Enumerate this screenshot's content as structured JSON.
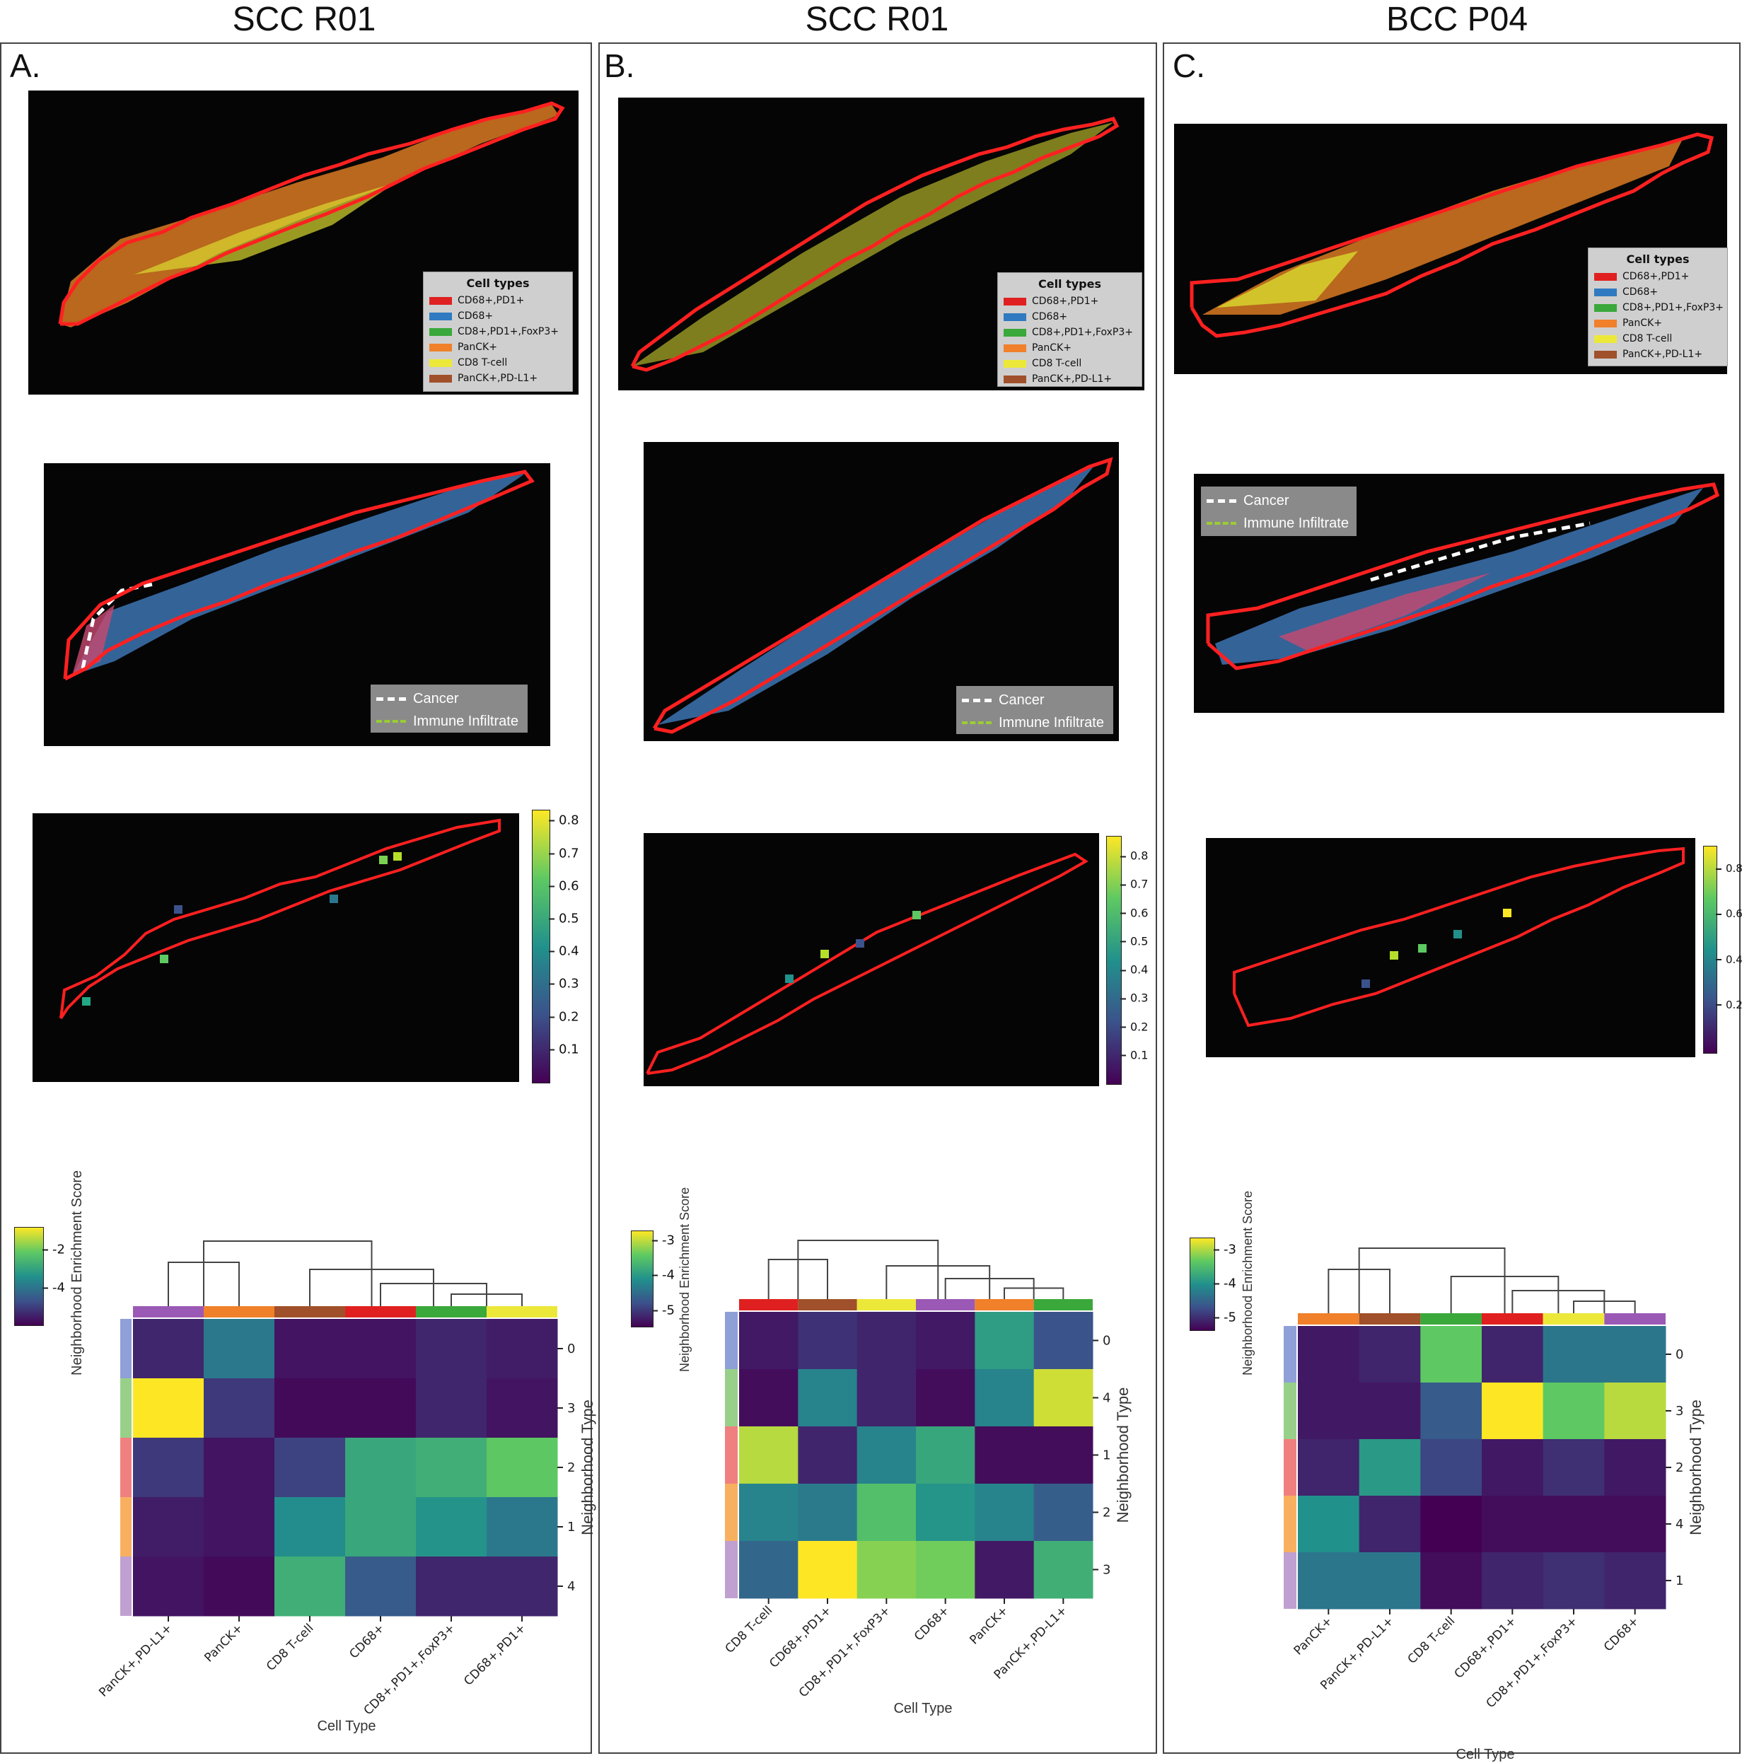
{
  "titles": [
    "SCC R01",
    "SCC R01",
    "BCC P04"
  ],
  "panel_labels": [
    "A.",
    "B.",
    "C."
  ],
  "cell_legend": {
    "title": "Cell types",
    "items": [
      {
        "label": "CD68+,PD1+",
        "color": "#e02020"
      },
      {
        "label": "CD68+",
        "color": "#2f7ac0"
      },
      {
        "label": "CD8+,PD1+,FoxP3+",
        "color": "#3aa83a"
      },
      {
        "label": "PanCK+",
        "color": "#f0802a"
      },
      {
        "label": "CD8 T-cell",
        "color": "#ece83a"
      },
      {
        "label": "PanCK+,PD-L1+",
        "color": "#a0502a"
      }
    ]
  },
  "region_legend": {
    "items": [
      {
        "label": "Cancer",
        "color": "#ffffff"
      },
      {
        "label": "Immune Infiltrate",
        "color": "#9acd32"
      }
    ]
  },
  "prob_colorbars": [
    {
      "ticks": [
        "0.8",
        "0.7",
        "0.6",
        "0.5",
        "0.4",
        "0.3",
        "0.2",
        "0.1"
      ]
    },
    {
      "ticks": [
        "0.8",
        "0.7",
        "0.6",
        "0.5",
        "0.4",
        "0.3",
        "0.2",
        "0.1"
      ]
    },
    {
      "ticks": [
        "0.8",
        "0.6",
        "0.4",
        "0.2"
      ]
    }
  ],
  "heatmap_axis": {
    "colorbar_label": "Neighborhood Enrichment Score",
    "ylabel": "Neighborhood Type",
    "xlabel": "Cell Type"
  },
  "chart_data": [
    {
      "type": "heatmap",
      "title": "",
      "xlabel": "Cell Type",
      "ylabel": "Neighborhood Type",
      "colorbar_ticks": [
        "-2",
        "-4"
      ],
      "vmin": -5,
      "vmax": -1.5,
      "columns": [
        "PanCK+,PD-L1+",
        "PanCK+",
        "CD8 T-cell",
        "CD68+",
        "CD8+,PD1+,FoxP3+",
        "CD68+,PD1+"
      ],
      "column_colors": [
        "#9b59b6",
        "#f0802a",
        "#a0502a",
        "#e02020",
        "#3aa83a",
        "#ece83a"
      ],
      "rows": [
        "0",
        "3",
        "2",
        "1",
        "4"
      ],
      "row_colors": [
        "#8fa0d8",
        "#98d08a",
        "#f08080",
        "#f8b060",
        "#c0a0d0"
      ],
      "values": [
        [
          -4.6,
          -3.6,
          -4.8,
          -4.8,
          -4.6,
          -4.7
        ],
        [
          -1.5,
          -4.4,
          -4.9,
          -4.9,
          -4.6,
          -4.8
        ],
        [
          -4.4,
          -4.8,
          -4.3,
          -2.9,
          -2.8,
          -2.4
        ],
        [
          -4.7,
          -4.8,
          -3.3,
          -2.9,
          -3.2,
          -3.6
        ],
        [
          -4.8,
          -4.9,
          -2.8,
          -4.0,
          -4.6,
          -4.6
        ]
      ]
    },
    {
      "type": "heatmap",
      "title": "",
      "xlabel": "Cell Type",
      "ylabel": "Neighborhood Type",
      "colorbar_ticks": [
        "-3",
        "-4",
        "-5"
      ],
      "vmin": -5.5,
      "vmax": -2.8,
      "columns": [
        "CD8 T-cell",
        "CD68+,PD1+",
        "CD8+,PD1+,FoxP3+",
        "CD68+",
        "PanCK+",
        "PanCK+,PD-L1+"
      ],
      "column_colors": [
        "#e02020",
        "#a0502a",
        "#ece83a",
        "#9b59b6",
        "#f0802a",
        "#3aa83a"
      ],
      "rows": [
        "0",
        "4",
        "1",
        "2",
        "3"
      ],
      "row_colors": [
        "#8fa0d8",
        "#98d08a",
        "#f08080",
        "#f8b060",
        "#c0a0d0"
      ],
      "values": [
        [
          -5.3,
          -5.1,
          -5.2,
          -5.3,
          -4.0,
          -4.8
        ],
        [
          -5.4,
          -4.3,
          -5.2,
          -5.4,
          -4.3,
          -3.0
        ],
        [
          -3.1,
          -5.2,
          -4.3,
          -3.9,
          -5.4,
          -5.4
        ],
        [
          -4.3,
          -4.4,
          -3.6,
          -4.1,
          -4.3,
          -4.7
        ],
        [
          -4.6,
          -2.8,
          -3.3,
          -3.4,
          -5.3,
          -3.8
        ]
      ]
    },
    {
      "type": "heatmap",
      "title": "",
      "xlabel": "Cell Type",
      "ylabel": "Neighborhood Type",
      "colorbar_ticks": [
        "-3",
        "-4",
        "-5"
      ],
      "vmin": -5.4,
      "vmax": -2.6,
      "columns": [
        "PanCK+",
        "PanCK+,PD-L1+",
        "CD8 T-cell",
        "CD68+,PD1+",
        "CD8+,PD1+,FoxP3+",
        "CD68+"
      ],
      "column_colors": [
        "#f0802a",
        "#a0502a",
        "#3aa83a",
        "#e02020",
        "#ece83a",
        "#9b59b6"
      ],
      "rows": [
        "0",
        "3",
        "2",
        "4",
        "1"
      ],
      "row_colors": [
        "#8fa0d8",
        "#98d08a",
        "#f08080",
        "#f8b060",
        "#c0a0d0"
      ],
      "values": [
        [
          -5.2,
          -5.1,
          -3.3,
          -5.1,
          -4.3,
          -4.3
        ],
        [
          -5.2,
          -5.2,
          -4.6,
          -2.6,
          -3.3,
          -2.9
        ],
        [
          -5.1,
          -3.9,
          -4.8,
          -5.2,
          -5.0,
          -5.2
        ],
        [
          -4.0,
          -5.1,
          -5.4,
          -5.3,
          -5.3,
          -5.3
        ],
        [
          -4.3,
          -4.3,
          -5.3,
          -5.1,
          -5.0,
          -5.1
        ]
      ]
    }
  ]
}
